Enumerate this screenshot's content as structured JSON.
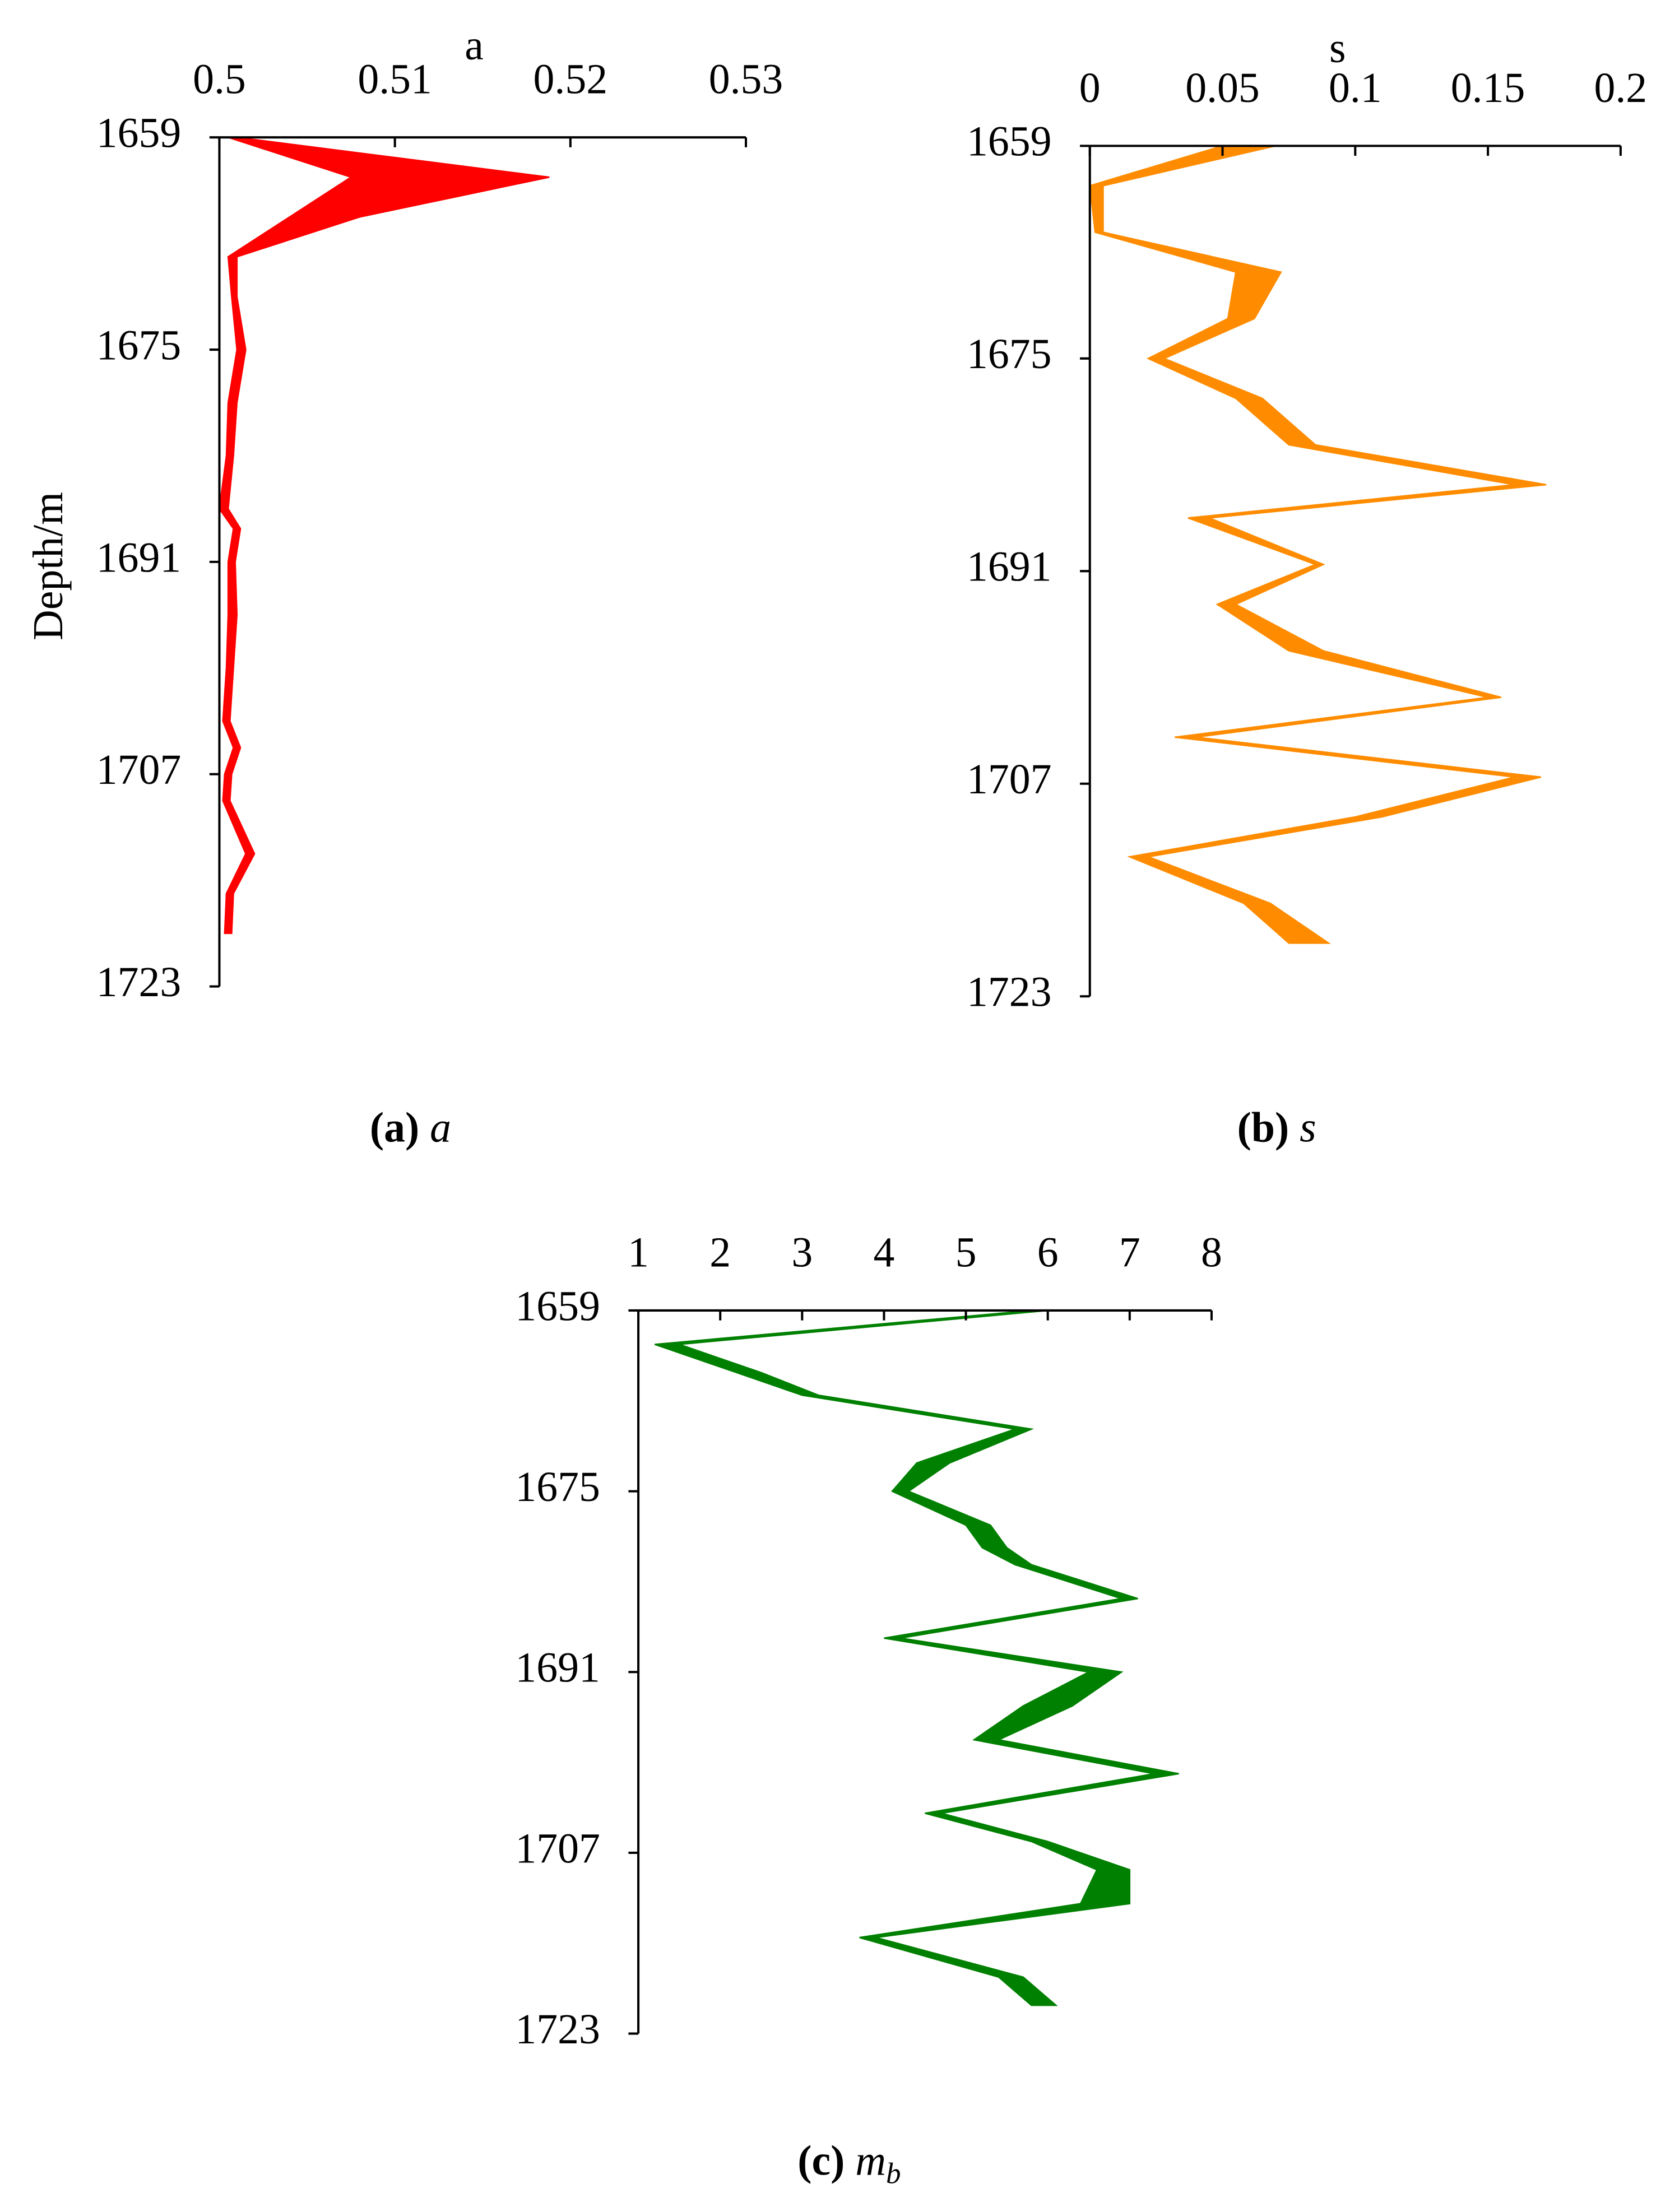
{
  "chart_data": [
    {
      "type": "band",
      "xlabel": "a",
      "ylabel": "Depth/m",
      "caption": {
        "label": "(a)",
        "symbol": "a"
      },
      "color": "#ff0000",
      "xlim": [
        0.5,
        0.53
      ],
      "xticks": [
        0.5,
        0.51,
        0.52,
        0.53
      ],
      "ylim": [
        1659,
        1723
      ],
      "yticks": [
        1659,
        1675,
        1691,
        1707,
        1723
      ],
      "y_inverted": true,
      "depth": [
        1659,
        1662,
        1665,
        1668,
        1671,
        1675,
        1679,
        1683,
        1687,
        1688.5,
        1691,
        1695,
        1699,
        1703,
        1705,
        1707,
        1709,
        1713,
        1716,
        1719
      ],
      "series": [
        {
          "values": [
            0.5005,
            0.5075,
            0.504,
            0.5005,
            0.5007,
            0.501,
            0.5005,
            0.5004,
            0.5,
            0.5008,
            0.5005,
            0.5005,
            0.5004,
            0.5002,
            0.5008,
            0.5003,
            0.5002,
            0.5015,
            0.5004,
            0.5003
          ]
        },
        {
          "values": [
            0.501,
            0.5188,
            0.508,
            0.501,
            0.501,
            0.5015,
            0.501,
            0.5008,
            0.5005,
            0.5012,
            0.5009,
            0.501,
            0.5008,
            0.5006,
            0.5012,
            0.5007,
            0.5006,
            0.502,
            0.5008,
            0.5007
          ]
        }
      ]
    },
    {
      "type": "band",
      "xlabel": "s",
      "caption": {
        "label": "(b)",
        "symbol": "s"
      },
      "color": "#ff8c00",
      "xlim": [
        0,
        0.2
      ],
      "xticks": [
        0,
        0.05,
        0.1,
        0.15,
        0.2
      ],
      "ylim": [
        1659,
        1723
      ],
      "yticks": [
        1659,
        1675,
        1691,
        1707,
        1723
      ],
      "y_inverted": true,
      "depth": [
        1659,
        1662,
        1665.5,
        1668.5,
        1672,
        1675,
        1678,
        1681.5,
        1684.5,
        1687,
        1690.5,
        1693.5,
        1697,
        1700.5,
        1703.5,
        1706.5,
        1709.5,
        1712.5,
        1716,
        1719
      ],
      "series": [
        {
          "values": [
            0.05,
            0,
            0.002,
            0.055,
            0.052,
            0.022,
            0.055,
            0.075,
            0.16,
            0.037,
            0.085,
            0.048,
            0.075,
            0.15,
            0.032,
            0.16,
            0.1,
            0.015,
            0.058,
            0.075
          ]
        },
        {
          "values": [
            0.07,
            0.005,
            0.005,
            0.072,
            0.062,
            0.028,
            0.065,
            0.085,
            0.172,
            0.045,
            0.088,
            0.055,
            0.088,
            0.155,
            0.04,
            0.17,
            0.11,
            0.022,
            0.068,
            0.09
          ]
        }
      ]
    },
    {
      "type": "band",
      "caption": {
        "label": "(c)",
        "symbol": "m",
        "subscript": "b"
      },
      "color": "#008000",
      "xlim": [
        1,
        8
      ],
      "xticks": [
        1,
        2,
        3,
        4,
        5,
        6,
        7,
        8
      ],
      "ylim": [
        1659,
        1723
      ],
      "yticks": [
        1659,
        1675,
        1691,
        1707,
        1723
      ],
      "y_inverted": true,
      "depth": [
        1659,
        1662,
        1664.5,
        1666.5,
        1669.5,
        1672.5,
        1675,
        1678,
        1680,
        1681.5,
        1684.5,
        1688,
        1691,
        1694,
        1697,
        1700,
        1703.5,
        1706,
        1708.5,
        1711.5,
        1714.5,
        1718,
        1720.5
      ],
      "series": [
        {
          "values": [
            5.8,
            1.2,
            2.2,
            3.0,
            5.6,
            4.4,
            4.1,
            5.0,
            5.2,
            5.6,
            6.9,
            4.0,
            6.5,
            5.7,
            5.1,
            7.3,
            4.5,
            5.8,
            6.6,
            6.4,
            3.7,
            5.4,
            5.8
          ]
        },
        {
          "values": [
            6.0,
            1.5,
            2.5,
            3.2,
            5.8,
            4.8,
            4.3,
            5.3,
            5.5,
            5.8,
            7.1,
            4.2,
            6.9,
            6.3,
            5.4,
            7.6,
            4.7,
            6.0,
            7.0,
            7.0,
            3.9,
            5.7,
            6.1
          ]
        }
      ]
    }
  ]
}
